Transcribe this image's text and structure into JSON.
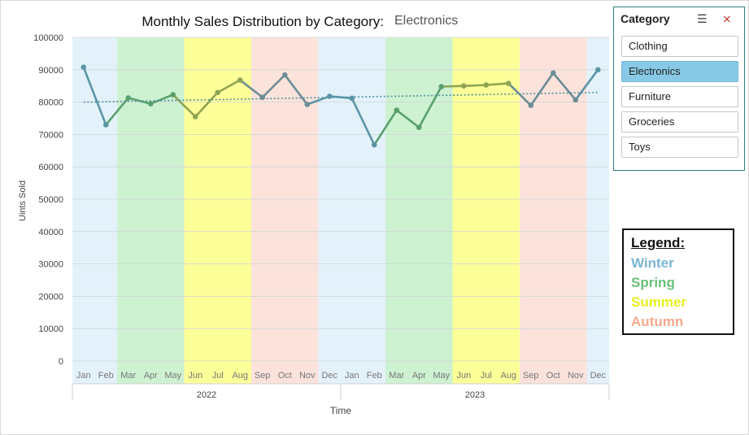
{
  "chart_data": {
    "type": "line",
    "title": "Monthly Sales Distribution by Category:",
    "selected_category_label": "Electronics",
    "ylabel": "Uints Sold",
    "xlabel": "Time",
    "ylim": [
      0,
      100000
    ],
    "yticks": [
      "0",
      "10000",
      "20000",
      "30000",
      "40000",
      "50000",
      "60000",
      "70000",
      "80000",
      "90000",
      "100000"
    ],
    "months": [
      "Jan",
      "Feb",
      "Mar",
      "Apr",
      "May",
      "Jun",
      "Jul",
      "Aug",
      "Sep",
      "Oct",
      "Nov",
      "Dec"
    ],
    "years": [
      "2022",
      "2023"
    ],
    "values": [
      90800,
      73000,
      81300,
      79500,
      82300,
      75500,
      83000,
      86800,
      81500,
      88400,
      79300,
      81800,
      81200,
      66800,
      77500,
      72200,
      84800,
      85000,
      85300,
      85800,
      79000,
      89000,
      80700,
      90000
    ],
    "trendline": {
      "start": 80000,
      "end": 83000
    },
    "season_colors": {
      "Winter": "#e3f2fa",
      "Spring": "#cdf2d2",
      "Summer": "#fdff98",
      "Autumn": "#fbe3dc"
    },
    "season_line_colors": {
      "Winter": "#5b95a6",
      "Spring": "#5aa06c",
      "Summer": "#8fa452",
      "Autumn": "#6c8c96"
    },
    "grid": true
  },
  "slicer": {
    "title": "Category",
    "items": [
      "Clothing",
      "Electronics",
      "Furniture",
      "Groceries",
      "Toys"
    ],
    "selected": "Electronics",
    "multi_select_icon": "multi-select-icon",
    "clear_filter_icon": "clear-filter-icon"
  },
  "legend": {
    "title": "Legend:",
    "items": [
      {
        "label": "Winter",
        "color": "#7ab6d3"
      },
      {
        "label": "Spring",
        "color": "#6cc07a"
      },
      {
        "label": "Summer",
        "color": "#ffff33"
      },
      {
        "label": "Autumn",
        "color": "#f4a98c"
      }
    ]
  }
}
